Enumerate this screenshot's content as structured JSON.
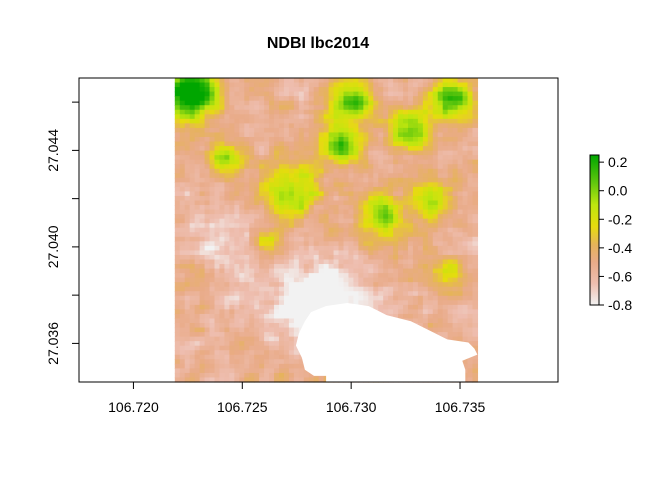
{
  "chart_data": {
    "type": "heatmap",
    "title": "NDBI lbc2014",
    "xlabel": "",
    "ylabel": "",
    "xlim": [
      106.7175,
      106.7395
    ],
    "ylim": [
      27.0344,
      27.047
    ],
    "x_ticks": [
      106.72,
      106.725,
      106.73,
      106.735
    ],
    "x_tick_labels": [
      "106.720",
      "106.725",
      "106.730",
      "106.735"
    ],
    "y_ticks": [
      27.036,
      27.04,
      27.044
    ],
    "y_tick_labels": [
      "27.036",
      "27.040",
      "27.044"
    ],
    "raster_extent": {
      "xmin": 106.7219,
      "xmax": 106.7358,
      "ymin": 27.0344,
      "ymax": 27.047
    },
    "value_range": [
      -0.8,
      0.25
    ],
    "legend": {
      "position": "right",
      "ticks": [
        0.2,
        0.0,
        -0.2,
        -0.4,
        -0.6,
        -0.8
      ],
      "tick_labels": [
        "0.2",
        "0.0",
        "-0.2",
        "-0.4",
        "-0.6",
        "-0.8"
      ]
    },
    "color_stops": [
      {
        "value": -0.8,
        "color": "#f2f2f2"
      },
      {
        "value": -0.65,
        "color": "#eebeb0"
      },
      {
        "value": -0.5,
        "color": "#e9ab88"
      },
      {
        "value": -0.38,
        "color": "#e6b35b"
      },
      {
        "value": -0.25,
        "color": "#e6dc0e"
      },
      {
        "value": -0.1,
        "color": "#bee60f"
      },
      {
        "value": 0.05,
        "color": "#64c80e"
      },
      {
        "value": 0.25,
        "color": "#00a600"
      }
    ],
    "grid": false
  }
}
